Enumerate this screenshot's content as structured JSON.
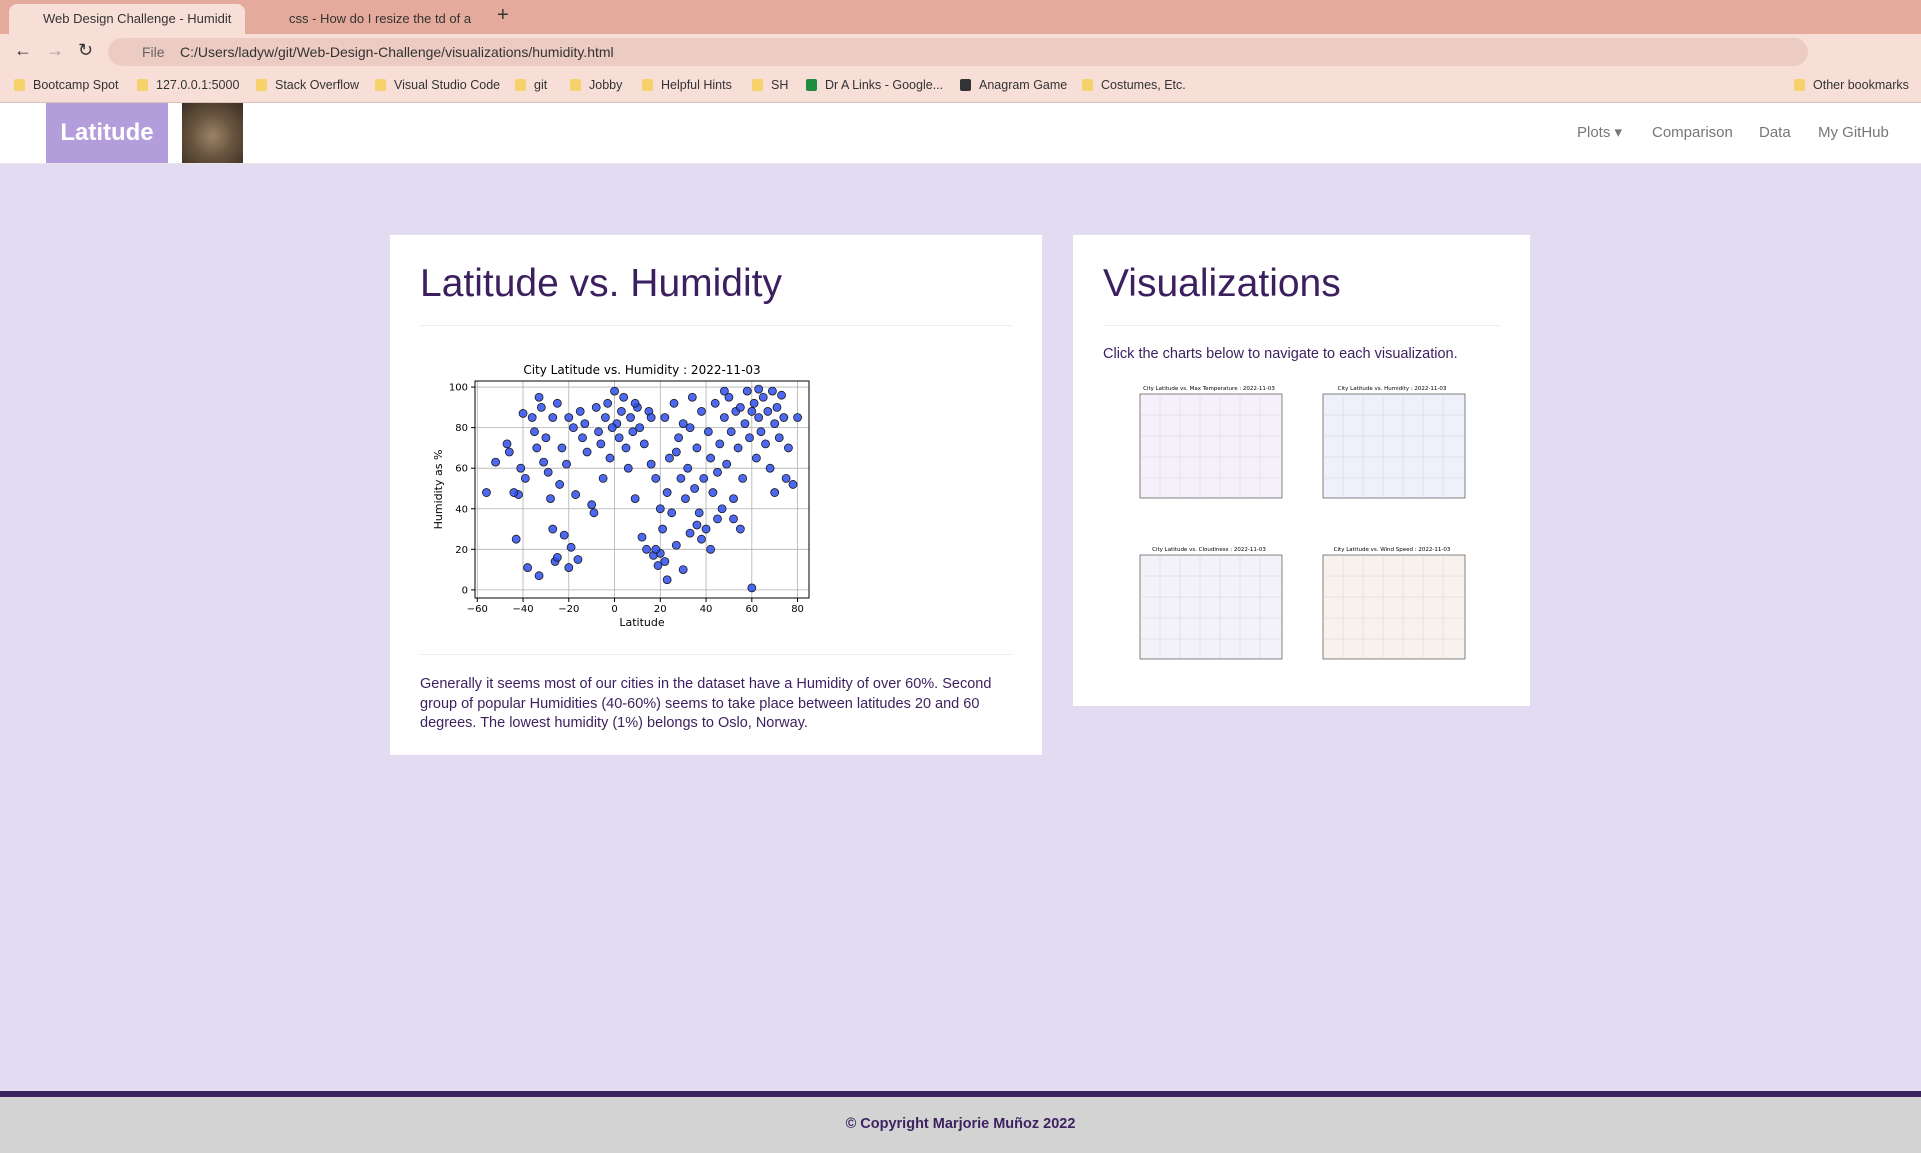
{
  "browser": {
    "tabs": [
      "Web Design Challenge - Humidit",
      "css - How do I resize the td of a"
    ],
    "file_label": "File",
    "url": "C:/Users/ladyw/git/Web-Design-Challenge/visualizations/humidity.html",
    "bookmarks": [
      "Bootcamp Spot",
      "127.0.0.1:5000",
      "Stack Overflow",
      "Visual Studio Code",
      "git",
      "Jobby",
      "Helpful Hints",
      "SH",
      "Dr A Links - Google...",
      "Anagram Game",
      "Costumes, Etc."
    ],
    "other_bookmarks": "Other bookmarks"
  },
  "navbar": {
    "brand": "Latitude",
    "links": [
      "Plots",
      "Comparison",
      "Data",
      "My GitHub"
    ]
  },
  "main": {
    "heading": "Latitude vs. Humidity",
    "description": "Generally it seems most of our cities in the dataset have a Humidity of over 60%. Second group of popular Humidities (40-60%) seems to take place between latitudes 20 and 60 degrees. The lowest humidity (1%) belongs to Oslo, Norway."
  },
  "chart_data": {
    "type": "scatter",
    "title": "City Latitude vs. Humidity : 2022-11-03",
    "x_label": "Latitude",
    "y_label": "Humidity as %",
    "color": "#2e4ff0",
    "grid": true,
    "xlim": [
      -61,
      85
    ],
    "ylim": [
      -4,
      103
    ],
    "xticks": [
      {
        "value": -60,
        "label": "−60"
      },
      {
        "value": -40,
        "label": "−40"
      },
      {
        "value": -20,
        "label": "−20"
      },
      0,
      20,
      40,
      60,
      80
    ],
    "yticks": [
      0,
      20,
      40,
      60,
      80,
      100
    ],
    "x": [
      -56,
      -52,
      -47,
      -46,
      -43,
      -42,
      -41,
      -40,
      -39,
      -38,
      -36,
      -35,
      -34,
      -33,
      -33,
      -32,
      -31,
      -30,
      -29,
      -28,
      -27,
      -27,
      -26,
      -25,
      -25,
      -24,
      -23,
      -22,
      -21,
      -20,
      -20,
      -19,
      -18,
      -17,
      -16,
      -15,
      -14,
      -12,
      -10,
      -9,
      -8,
      -7,
      -6,
      -5,
      -4,
      -3,
      -2,
      0,
      1,
      2,
      3,
      4,
      5,
      6,
      7,
      8,
      9,
      10,
      11,
      12,
      13,
      14,
      15,
      16,
      17,
      18,
      19,
      20,
      21,
      22,
      23,
      24,
      25,
      26,
      27,
      28,
      29,
      30,
      30,
      31,
      32,
      33,
      34,
      35,
      36,
      37,
      38,
      39,
      40,
      41,
      42,
      43,
      44,
      45,
      46,
      47,
      48,
      49,
      50,
      51,
      52,
      53,
      54,
      55,
      56,
      57,
      58,
      59,
      60,
      60,
      61,
      62,
      63,
      64,
      65,
      66,
      67,
      68,
      69,
      70,
      71,
      72,
      73,
      74,
      75,
      76,
      78,
      80,
      70,
      55,
      45,
      38,
      20,
      18,
      22,
      -44,
      -13,
      -1,
      9,
      16,
      27,
      33,
      48,
      63,
      52,
      42,
      36,
      23
    ],
    "y": [
      48,
      63,
      72,
      68,
      25,
      47,
      60,
      87,
      55,
      11,
      85,
      78,
      70,
      7,
      95,
      90,
      63,
      75,
      58,
      45,
      30,
      85,
      14,
      16,
      92,
      52,
      70,
      27,
      62,
      11,
      85,
      21,
      80,
      47,
      15,
      88,
      75,
      68,
      42,
      38,
      90,
      78,
      72,
      55,
      85,
      92,
      65,
      98,
      82,
      75,
      88,
      95,
      70,
      60,
      85,
      78,
      45,
      90,
      80,
      26,
      72,
      20,
      88,
      62,
      17,
      55,
      12,
      40,
      30,
      85,
      48,
      65,
      38,
      92,
      22,
      75,
      55,
      10,
      82,
      45,
      60,
      28,
      95,
      50,
      70,
      38,
      88,
      55,
      30,
      78,
      65,
      48,
      92,
      58,
      72,
      40,
      85,
      62,
      95,
      78,
      45,
      88,
      70,
      90,
      55,
      82,
      98,
      75,
      1,
      88,
      92,
      65,
      85,
      78,
      95,
      72,
      88,
      60,
      98,
      82,
      90,
      75,
      96,
      85,
      55,
      70,
      52,
      85,
      48,
      30,
      35,
      25,
      18,
      20,
      14,
      48,
      82,
      80,
      92,
      85,
      68,
      80,
      98,
      99,
      35,
      20,
      32,
      5
    ]
  },
  "visualizations": {
    "heading": "Visualizations",
    "intro": "Click the charts below to navigate to each visualization.",
    "thumbnails": [
      "City Latitude vs. Max Temperature : 2022-11-03",
      "City Latitude vs. Humidity : 2022-11-03",
      "City Latitude vs. Cloudiness : 2022-11-03",
      "City Latitude vs. Wind Speed : 2022-11-03"
    ]
  },
  "footer": {
    "copyright": "© Copyright Marjorie Muñoz 2022"
  }
}
